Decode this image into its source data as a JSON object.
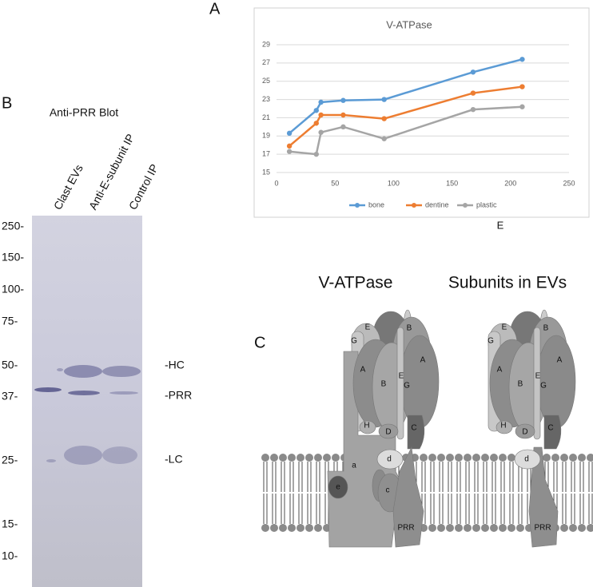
{
  "panels": [
    "A",
    "B",
    "C"
  ],
  "chart_data": {
    "type": "line",
    "title": "V-ATPase",
    "x": [
      11,
      34,
      38,
      57,
      92,
      168,
      210
    ],
    "series": [
      {
        "name": "bone",
        "color": "#5b9bd5",
        "values": [
          19.3,
          21.8,
          22.7,
          22.9,
          23.0,
          26.0,
          27.4
        ]
      },
      {
        "name": "dentine",
        "color": "#ed7d31",
        "values": [
          17.9,
          20.4,
          21.3,
          21.3,
          20.9,
          23.7,
          24.4
        ]
      },
      {
        "name": "plastic",
        "color": "#a5a5a5",
        "values": [
          17.3,
          17.0,
          19.4,
          20.0,
          18.7,
          21.9,
          22.2
        ]
      }
    ],
    "xlim": [
      0,
      250
    ],
    "xticks": [
      0,
      50,
      100,
      150,
      200,
      250
    ],
    "ylim": [
      15,
      29
    ],
    "yticks": [
      15,
      17,
      19,
      21,
      23,
      25,
      27,
      29
    ],
    "grid": true,
    "legend": "bottom"
  },
  "stray_label": "E",
  "blot": {
    "title": "Anti-PRR Blot",
    "lanes": [
      "Clast EVs",
      "Anti-E-subunit IP",
      "Control IP"
    ],
    "markers": [
      "250-",
      "150-",
      "100-",
      "75-",
      "50-",
      "37-",
      "25-",
      "15-",
      "10-"
    ],
    "band_labels": [
      "-HC",
      "-PRR",
      "-LC"
    ]
  },
  "diagram": {
    "titles": [
      "V-ATPase",
      "Subunits in EVs"
    ],
    "left_labels": [
      "E",
      "B",
      "G",
      "A",
      "B",
      "E",
      "A",
      "G",
      "H",
      "D",
      "C",
      "a",
      "d",
      "e",
      "c",
      "PRR"
    ],
    "right_labels": [
      "E",
      "B",
      "G",
      "A",
      "B",
      "E",
      "A",
      "G",
      "H",
      "D",
      "C",
      "d",
      "PRR"
    ]
  }
}
